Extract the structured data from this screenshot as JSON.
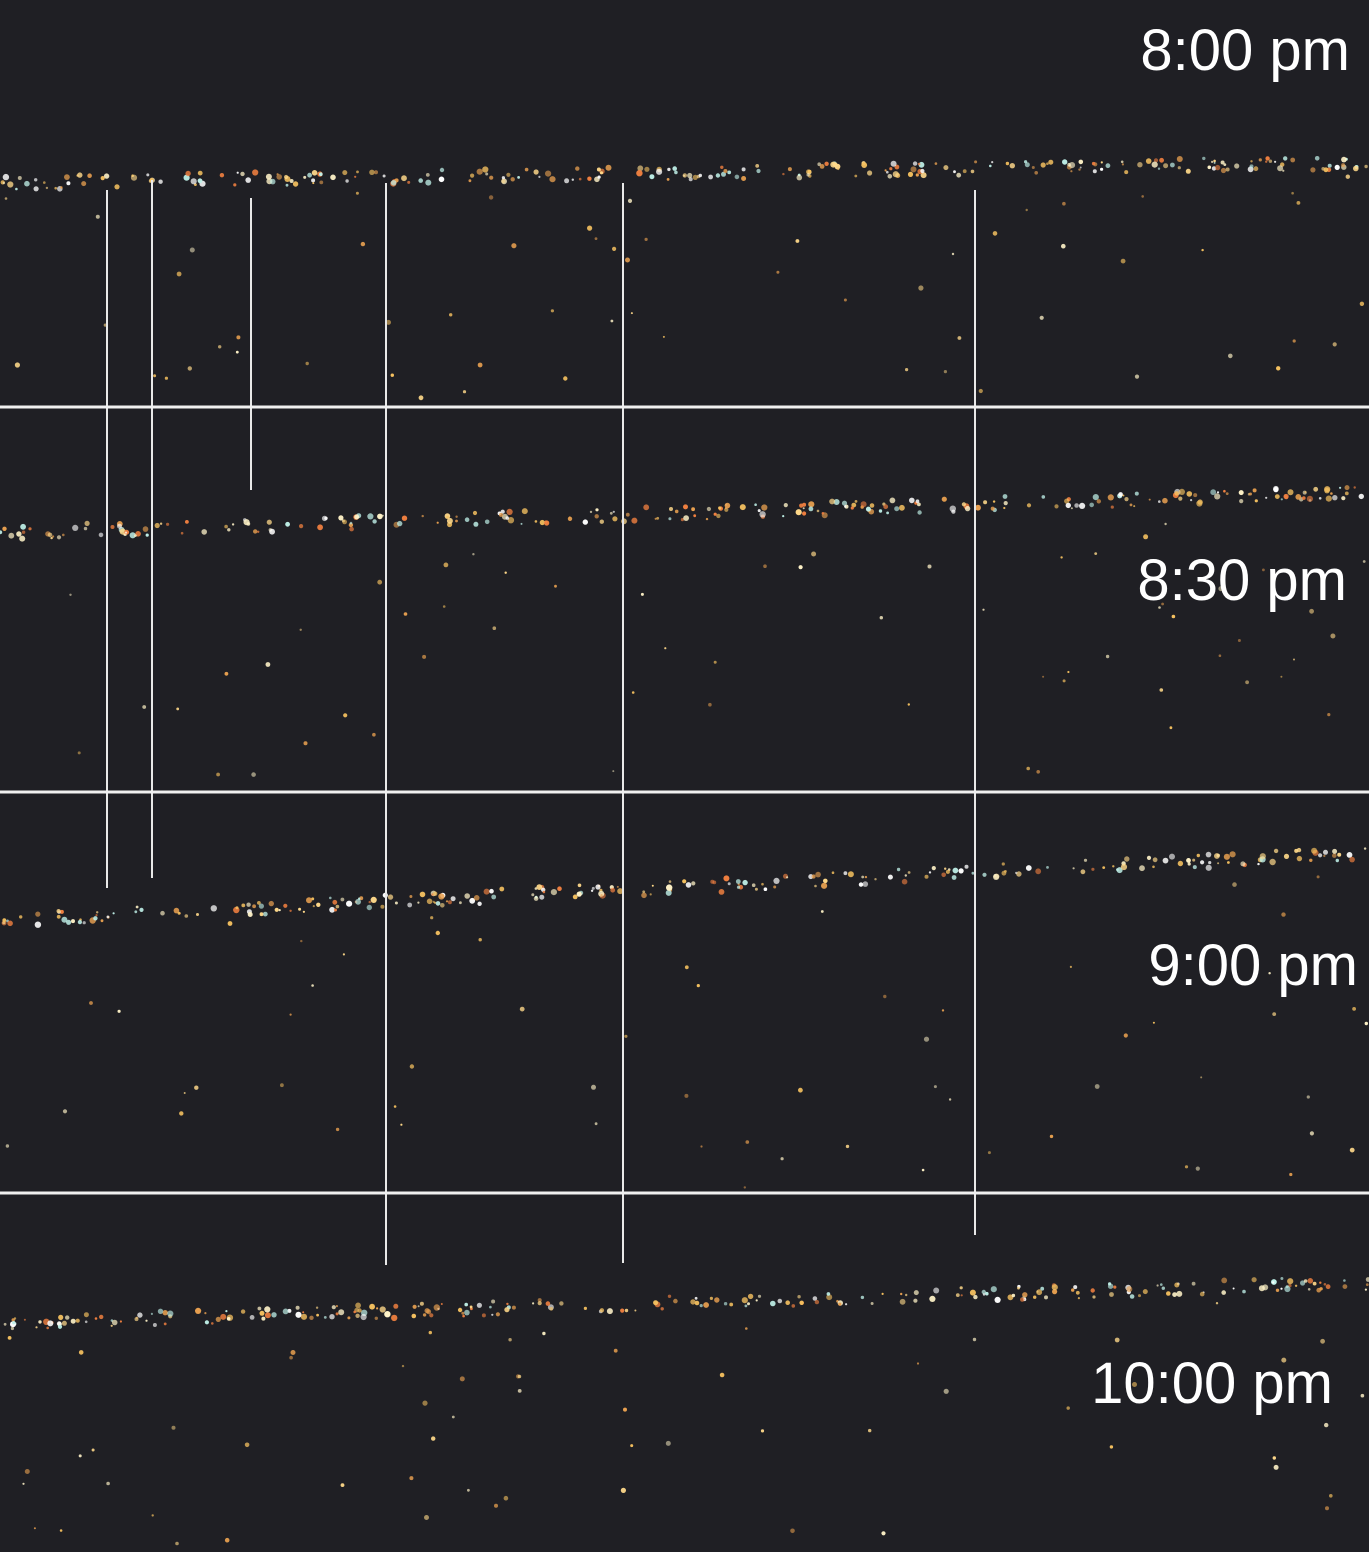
{
  "panels": [
    {
      "label": "8:00 pm"
    },
    {
      "label": "8:30 pm"
    },
    {
      "label": "9:00 pm"
    },
    {
      "label": "10:00 pm"
    }
  ]
}
